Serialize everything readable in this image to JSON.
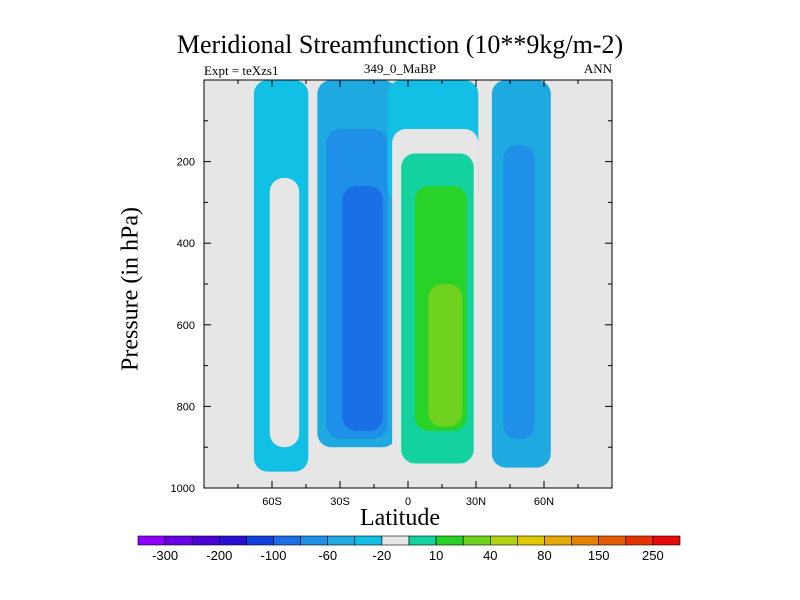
{
  "chart_data": {
    "type": "contour",
    "title": "Meridional Streamfunction (10**9kg/m-2)",
    "subtitle_left": "Expt = teXzs1",
    "subtitle_center": "349_0_MaBP",
    "subtitle_right": "ANN",
    "xlabel": "Latitude",
    "ylabel": "Pressure (in hPa)",
    "xlim": [
      -90,
      90
    ],
    "ylim": [
      1000,
      0
    ],
    "x_ticks": [
      {
        "value": -60,
        "label": "60S"
      },
      {
        "value": -30,
        "label": "30S"
      },
      {
        "value": 0,
        "label": "0"
      },
      {
        "value": 30,
        "label": "30N"
      },
      {
        "value": 60,
        "label": "60N"
      }
    ],
    "y_ticks": [
      {
        "value": 200,
        "label": "200"
      },
      {
        "value": 400,
        "label": "400"
      },
      {
        "value": 600,
        "label": "600"
      },
      {
        "value": 800,
        "label": "800"
      },
      {
        "value": 1000,
        "label": "1000"
      }
    ],
    "missing_color": "#e6e6e6",
    "colorbar": {
      "colors": [
        "#8c00ff",
        "#6a00e6",
        "#4b00d6",
        "#2a10d0",
        "#1440e0",
        "#1a6ee6",
        "#1e90e8",
        "#1eaae0",
        "#12c0e6",
        "#e6e6e6",
        "#14d2a0",
        "#28d228",
        "#6ed21e",
        "#b4d214",
        "#e0c800",
        "#e6aa00",
        "#e68200",
        "#e65a00",
        "#e63200",
        "#e60a0a"
      ],
      "labels": [
        "-300",
        "-200",
        "-100",
        "-60",
        "-20",
        "10",
        "40",
        "80",
        "150",
        "250"
      ]
    },
    "cells": [
      {
        "x": [
          -68,
          -44
        ],
        "p": [
          0,
          960
        ],
        "level": -1
      },
      {
        "x": [
          -61,
          -48
        ],
        "p": [
          240,
          900
        ],
        "level": 0
      },
      {
        "x": [
          -40,
          -5
        ],
        "p": [
          0,
          900
        ],
        "level": -2
      },
      {
        "x": [
          -36,
          -9
        ],
        "p": [
          120,
          880
        ],
        "level": -3
      },
      {
        "x": [
          -29,
          -11
        ],
        "p": [
          260,
          860
        ],
        "level": -4
      },
      {
        "x": [
          -9,
          31
        ],
        "p": [
          0,
          300
        ],
        "level": -1
      },
      {
        "x": [
          -7,
          31
        ],
        "p": [
          120,
          960
        ],
        "level": 0
      },
      {
        "x": [
          -3,
          29
        ],
        "p": [
          180,
          940
        ],
        "level": 1
      },
      {
        "x": [
          3,
          26
        ],
        "p": [
          260,
          860
        ],
        "level": 2
      },
      {
        "x": [
          9,
          24
        ],
        "p": [
          500,
          850
        ],
        "level": 3
      },
      {
        "x": [
          37,
          63
        ],
        "p": [
          0,
          950
        ],
        "level": -2
      },
      {
        "x": [
          42,
          56
        ],
        "p": [
          160,
          880
        ],
        "level": -3
      }
    ]
  }
}
